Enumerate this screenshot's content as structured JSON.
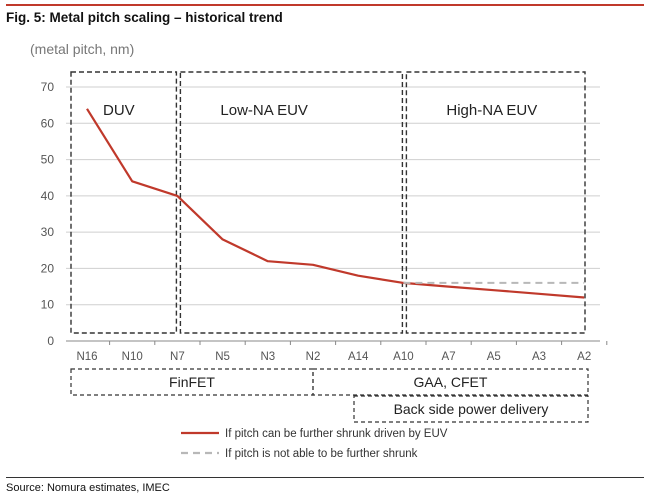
{
  "header": {
    "title": "Fig. 5: Metal pitch scaling – historical trend",
    "source": "Source: Nomura estimates, IMEC"
  },
  "chart_data": {
    "type": "line",
    "ylabel": "(metal pitch, nm)",
    "ylim": [
      0,
      70
    ],
    "yticks": [
      0,
      10,
      20,
      30,
      40,
      50,
      60,
      70
    ],
    "grid": true,
    "categories": [
      "N16",
      "N10",
      "N7",
      "N5",
      "N3",
      "N2",
      "A14",
      "A10",
      "A7",
      "A5",
      "A3",
      "A2"
    ],
    "series": [
      {
        "name": "If pitch can be further shrunk driven by EUV",
        "color": "#c0392b",
        "style": "solid",
        "x": [
          "N16",
          "N10",
          "N7",
          "N5",
          "N3",
          "N2",
          "A14",
          "A10",
          "A7",
          "A5",
          "A3",
          "A2"
        ],
        "values": [
          64,
          44,
          40,
          28,
          22,
          21,
          18,
          16,
          15,
          14,
          13,
          12
        ]
      },
      {
        "name": "If pitch is not able to be further shrunk",
        "color": "#b8b8b8",
        "style": "dashed",
        "x": [
          "A10",
          "A7",
          "A5",
          "A3",
          "A2"
        ],
        "values": [
          16,
          16,
          16,
          16,
          16
        ]
      }
    ],
    "regions": [
      {
        "label": "DUV",
        "from": "N16",
        "to": "N7"
      },
      {
        "label": "Low-NA EUV",
        "from": "N7",
        "to": "A10"
      },
      {
        "label": "High-NA EUV",
        "from": "A10",
        "to": "A2"
      }
    ],
    "bands": [
      {
        "label": "FinFET",
        "from": "N16",
        "to": "N2"
      },
      {
        "label": "GAA, CFET",
        "from": "N2",
        "to": "A2"
      },
      {
        "label": "Back side power delivery",
        "from": "A14",
        "to": "A2"
      }
    ],
    "legend_position": "bottom"
  }
}
